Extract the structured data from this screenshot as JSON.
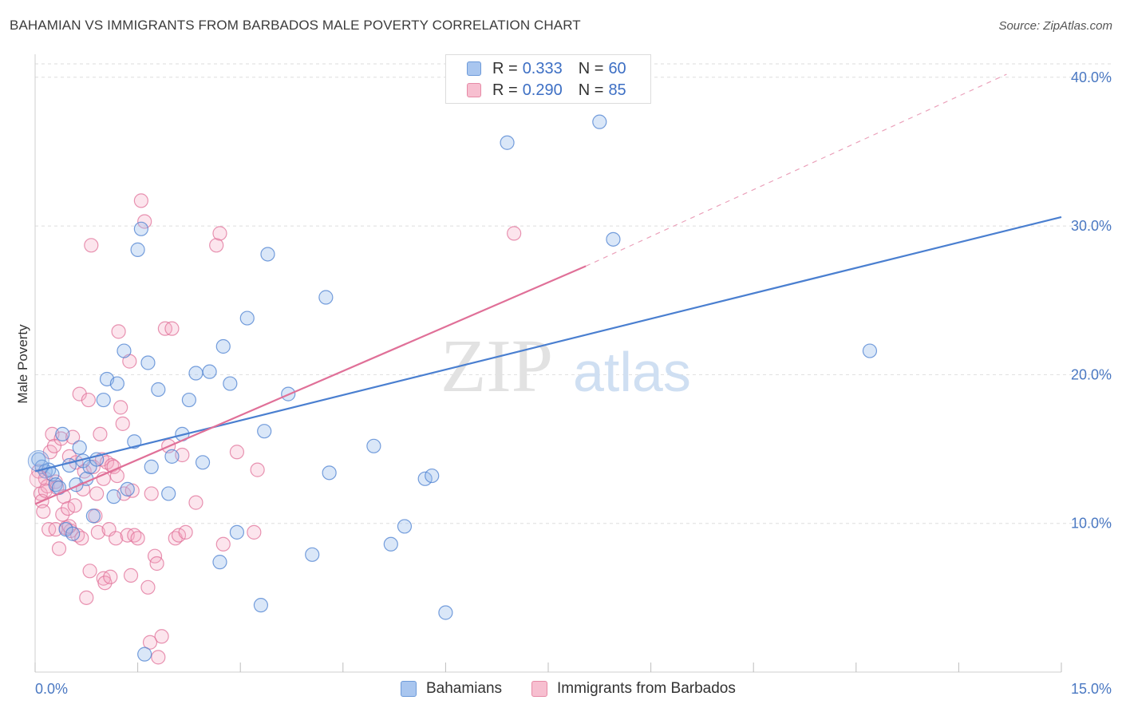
{
  "title": "BAHAMIAN VS IMMIGRANTS FROM BARBADOS MALE POVERTY CORRELATION CHART",
  "source": "Source: ZipAtlas.com",
  "watermark": {
    "zip": "ZIP",
    "atlas": "atlas"
  },
  "legend_top": {
    "rows": [
      {
        "r_label": "R =",
        "r_value": "0.333",
        "n_label": "N =",
        "n_value": "60",
        "color": "#a9c6ef",
        "border": "#6d9ad9"
      },
      {
        "r_label": "R =",
        "r_value": "0.290",
        "n_label": "N =",
        "n_value": "85",
        "color": "#f7bfd0",
        "border": "#e68aa6"
      }
    ]
  },
  "legend_bottom": [
    {
      "label": "Bahamians",
      "color": "#a9c6ef",
      "border": "#6d9ad9"
    },
    {
      "label": "Immigrants from Barbados",
      "color": "#f7bfd0",
      "border": "#e68aa6"
    }
  ],
  "chart_data": {
    "type": "scatter",
    "xlabel": "",
    "ylabel": "Male Poverty",
    "xlim": [
      0,
      15
    ],
    "ylim": [
      0,
      40.9
    ],
    "x_tick_labels": [
      "0.0%",
      "15.0%"
    ],
    "y_ticks": [
      10,
      20,
      30,
      40
    ],
    "y_tick_labels": [
      "10.0%",
      "20.0%",
      "30.0%",
      "40.0%"
    ],
    "grid": true,
    "legend": "top-center",
    "colors": {
      "blue": "#4a7fd0",
      "pink": "#e07098",
      "blue_fill": "rgba(150,185,235,0.35)",
      "pink_fill": "rgba(245,170,195,0.30)"
    },
    "series": [
      {
        "name": "Bahamians",
        "color": "#4a7fd0",
        "points": [
          [
            0.05,
            14.3
          ],
          [
            0.1,
            13.8
          ],
          [
            0.15,
            13.5
          ],
          [
            0.2,
            13.6
          ],
          [
            0.25,
            13.3
          ],
          [
            0.3,
            12.6
          ],
          [
            0.35,
            12.4
          ],
          [
            0.4,
            16.0
          ],
          [
            0.45,
            9.6
          ],
          [
            0.5,
            13.9
          ],
          [
            0.55,
            9.3
          ],
          [
            0.65,
            15.1
          ],
          [
            0.7,
            14.2
          ],
          [
            0.75,
            13.0
          ],
          [
            0.8,
            13.8
          ],
          [
            0.85,
            10.5
          ],
          [
            0.9,
            14.3
          ],
          [
            1.0,
            18.3
          ],
          [
            1.05,
            19.7
          ],
          [
            1.15,
            11.8
          ],
          [
            1.2,
            19.4
          ],
          [
            1.3,
            21.6
          ],
          [
            1.35,
            12.3
          ],
          [
            1.45,
            15.5
          ],
          [
            1.55,
            29.8
          ],
          [
            1.5,
            28.4
          ],
          [
            1.65,
            20.8
          ],
          [
            1.7,
            13.8
          ],
          [
            1.8,
            19.0
          ],
          [
            1.95,
            12.0
          ],
          [
            2.0,
            14.5
          ],
          [
            2.15,
            16.0
          ],
          [
            2.25,
            18.3
          ],
          [
            2.35,
            20.1
          ],
          [
            2.45,
            14.1
          ],
          [
            2.55,
            20.2
          ],
          [
            2.7,
            7.4
          ],
          [
            2.75,
            21.9
          ],
          [
            2.85,
            19.4
          ],
          [
            2.95,
            9.4
          ],
          [
            3.1,
            23.8
          ],
          [
            3.3,
            4.5
          ],
          [
            3.4,
            28.1
          ],
          [
            3.35,
            16.2
          ],
          [
            3.7,
            18.7
          ],
          [
            4.05,
            7.9
          ],
          [
            4.25,
            25.2
          ],
          [
            4.3,
            13.4
          ],
          [
            4.95,
            15.2
          ],
          [
            5.2,
            8.6
          ],
          [
            5.4,
            9.8
          ],
          [
            5.7,
            13.0
          ],
          [
            5.8,
            13.2
          ],
          [
            6.0,
            4.0
          ],
          [
            6.9,
            35.6
          ],
          [
            8.25,
            37.0
          ],
          [
            8.45,
            29.1
          ],
          [
            12.2,
            21.6
          ],
          [
            1.6,
            1.2
          ],
          [
            0.6,
            12.6
          ]
        ],
        "trend": {
          "x": [
            0,
            15
          ],
          "y": [
            13.5,
            30.6
          ]
        }
      },
      {
        "name": "Immigrants from Barbados",
        "color": "#e07098",
        "points": [
          [
            0.05,
            13.5
          ],
          [
            0.08,
            12.0
          ],
          [
            0.1,
            11.5
          ],
          [
            0.12,
            10.8
          ],
          [
            0.15,
            13.0
          ],
          [
            0.18,
            12.5
          ],
          [
            0.2,
            9.6
          ],
          [
            0.22,
            14.8
          ],
          [
            0.25,
            16.0
          ],
          [
            0.28,
            15.2
          ],
          [
            0.3,
            12.8
          ],
          [
            0.32,
            12.4
          ],
          [
            0.35,
            8.3
          ],
          [
            0.38,
            15.7
          ],
          [
            0.4,
            10.6
          ],
          [
            0.42,
            11.8
          ],
          [
            0.45,
            9.7
          ],
          [
            0.48,
            11.0
          ],
          [
            0.5,
            14.5
          ],
          [
            0.52,
            9.5
          ],
          [
            0.55,
            15.8
          ],
          [
            0.58,
            11.2
          ],
          [
            0.6,
            14.1
          ],
          [
            0.62,
            9.2
          ],
          [
            0.65,
            18.7
          ],
          [
            0.68,
            9.0
          ],
          [
            0.7,
            12.3
          ],
          [
            0.72,
            13.5
          ],
          [
            0.75,
            5.0
          ],
          [
            0.78,
            18.3
          ],
          [
            0.8,
            6.8
          ],
          [
            0.82,
            28.7
          ],
          [
            0.85,
            13.8
          ],
          [
            0.88,
            10.5
          ],
          [
            0.9,
            12.0
          ],
          [
            0.92,
            9.4
          ],
          [
            0.95,
            16.0
          ],
          [
            0.98,
            14.3
          ],
          [
            1.0,
            6.3
          ],
          [
            1.02,
            6.0
          ],
          [
            1.05,
            14.1
          ],
          [
            1.08,
            9.6
          ],
          [
            1.1,
            6.4
          ],
          [
            1.12,
            13.9
          ],
          [
            1.15,
            13.8
          ],
          [
            1.18,
            9.0
          ],
          [
            1.2,
            13.2
          ],
          [
            1.22,
            22.9
          ],
          [
            1.25,
            17.8
          ],
          [
            1.28,
            16.7
          ],
          [
            1.3,
            12.0
          ],
          [
            1.35,
            9.2
          ],
          [
            1.38,
            20.9
          ],
          [
            1.4,
            6.5
          ],
          [
            1.42,
            12.2
          ],
          [
            1.45,
            9.2
          ],
          [
            1.5,
            9.0
          ],
          [
            1.55,
            31.7
          ],
          [
            1.6,
            30.3
          ],
          [
            1.65,
            5.7
          ],
          [
            1.68,
            2.0
          ],
          [
            1.7,
            12.0
          ],
          [
            1.75,
            7.8
          ],
          [
            1.78,
            7.3
          ],
          [
            1.8,
            1.0
          ],
          [
            1.85,
            2.4
          ],
          [
            1.9,
            23.1
          ],
          [
            1.95,
            15.2
          ],
          [
            2.0,
            23.1
          ],
          [
            2.05,
            9.0
          ],
          [
            2.1,
            9.2
          ],
          [
            2.15,
            14.6
          ],
          [
            2.35,
            11.4
          ],
          [
            2.65,
            28.7
          ],
          [
            2.7,
            29.5
          ],
          [
            2.75,
            8.6
          ],
          [
            2.95,
            14.8
          ],
          [
            3.2,
            9.4
          ],
          [
            3.25,
            13.6
          ],
          [
            0.15,
            12.2
          ],
          [
            0.3,
            9.6
          ],
          [
            0.5,
            9.8
          ],
          [
            1.0,
            13.0
          ],
          [
            7.0,
            29.5
          ],
          [
            2.2,
            9.4
          ]
        ],
        "trend": {
          "x": [
            0,
            8.05
          ],
          "y": [
            11.3,
            27.3
          ]
        },
        "trend_dashed": {
          "x": [
            8.05,
            14.2
          ],
          "y": [
            27.3,
            40.2
          ]
        }
      }
    ]
  }
}
